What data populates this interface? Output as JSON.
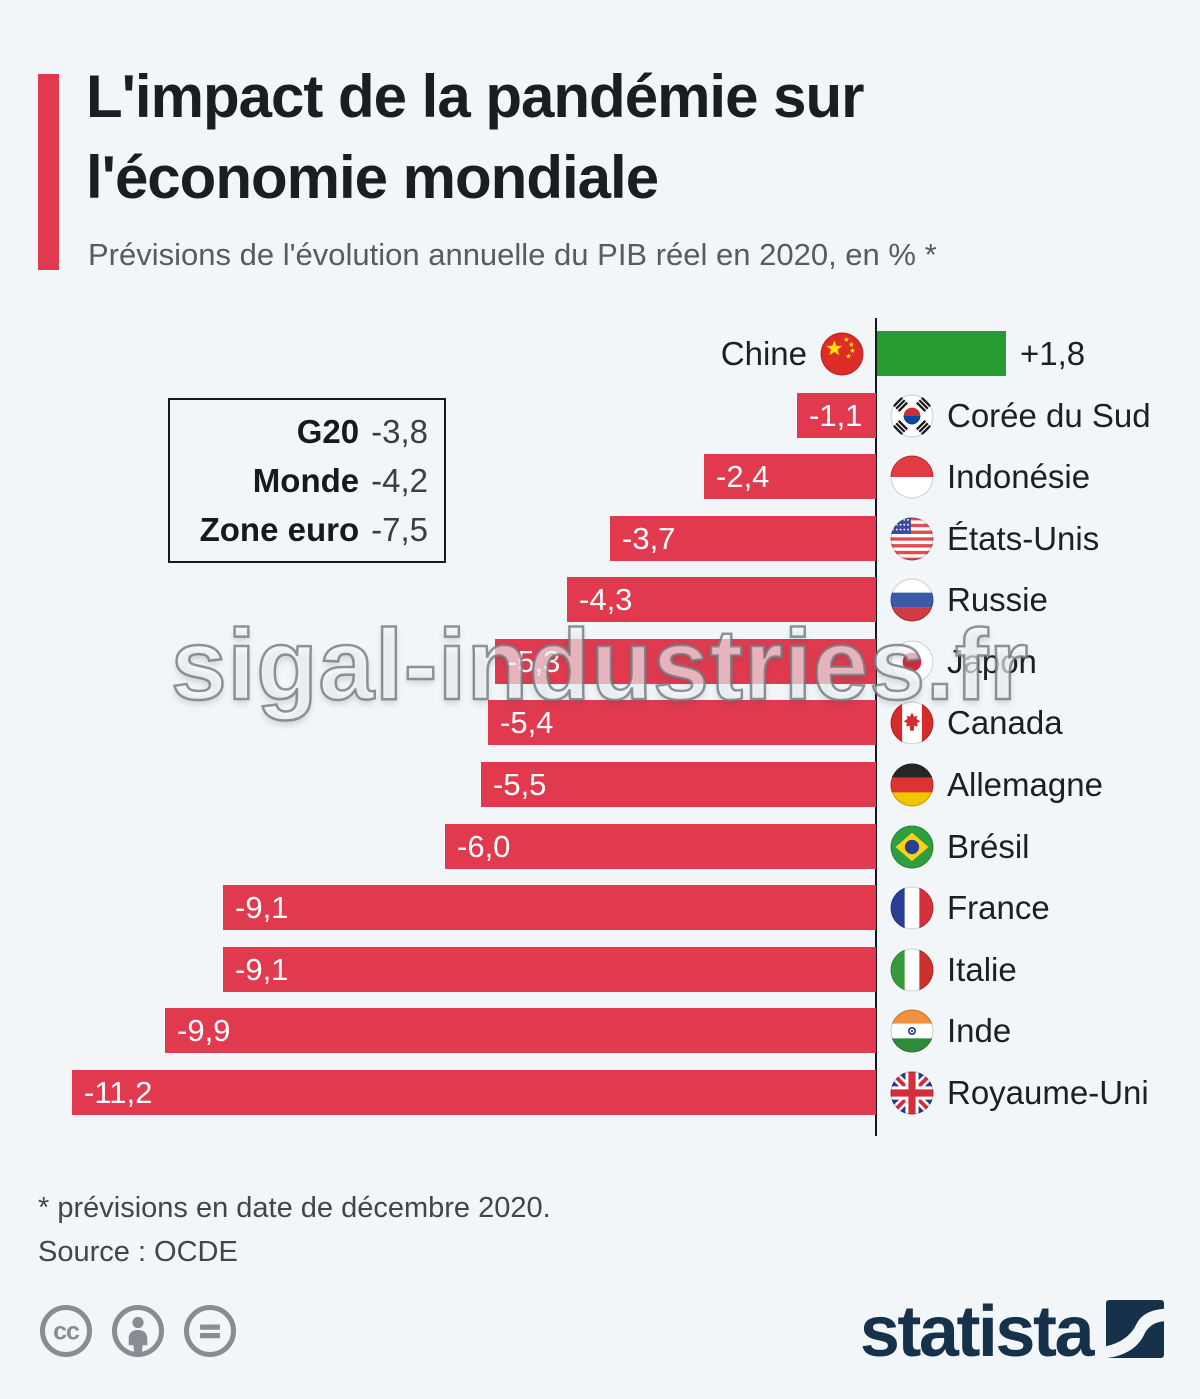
{
  "header": {
    "title_line1": "L'impact de la pandémie sur",
    "title_line2": "l'économie mondiale",
    "subtitle": "Prévisions de l'évolution annuelle du PIB réel en 2020, en % *"
  },
  "stats_box": {
    "rows": [
      {
        "label": "G20",
        "value": "-3,8"
      },
      {
        "label": "Monde",
        "value": "-4,2"
      },
      {
        "label": "Zone euro",
        "value": "-7,5"
      }
    ]
  },
  "chart_data": {
    "type": "bar",
    "orientation": "horizontal",
    "unit": "% annual real GDP change forecast 2020",
    "categories": [
      "Chine",
      "Corée du Sud",
      "Indonésie",
      "États-Unis",
      "Russie",
      "Japon",
      "Canada",
      "Allemagne",
      "Brésil",
      "France",
      "Italie",
      "Inde",
      "Royaume-Uni"
    ],
    "values": [
      1.8,
      -1.1,
      -2.4,
      -3.7,
      -4.3,
      -5.3,
      -5.4,
      -5.5,
      -6.0,
      -9.1,
      -9.1,
      -9.9,
      -11.2
    ],
    "value_labels": [
      "+1,8",
      "-1,1",
      "-2,4",
      "-3,7",
      "-4,3",
      "-5,3",
      "-5,4",
      "-5,5",
      "-6,0",
      "-9,1",
      "-9,1",
      "-9,9",
      "-11,2"
    ],
    "flags": [
      "cn",
      "kr",
      "id",
      "us",
      "ru",
      "jp",
      "ca",
      "de",
      "br",
      "fr",
      "it",
      "in",
      "gb"
    ],
    "positive_color": "#269b31",
    "negative_color": "#e13a4f",
    "xlim": [
      -11.2,
      1.8
    ],
    "grid": false,
    "legend": false
  },
  "watermark": "sigal-industries.fr",
  "footer": {
    "note": "* prévisions en date de décembre 2020.",
    "source": "Source : OCDE",
    "license_icons": [
      "cc-icon",
      "attribution-icon",
      "no-derivatives-icon"
    ],
    "brand": "statista"
  }
}
